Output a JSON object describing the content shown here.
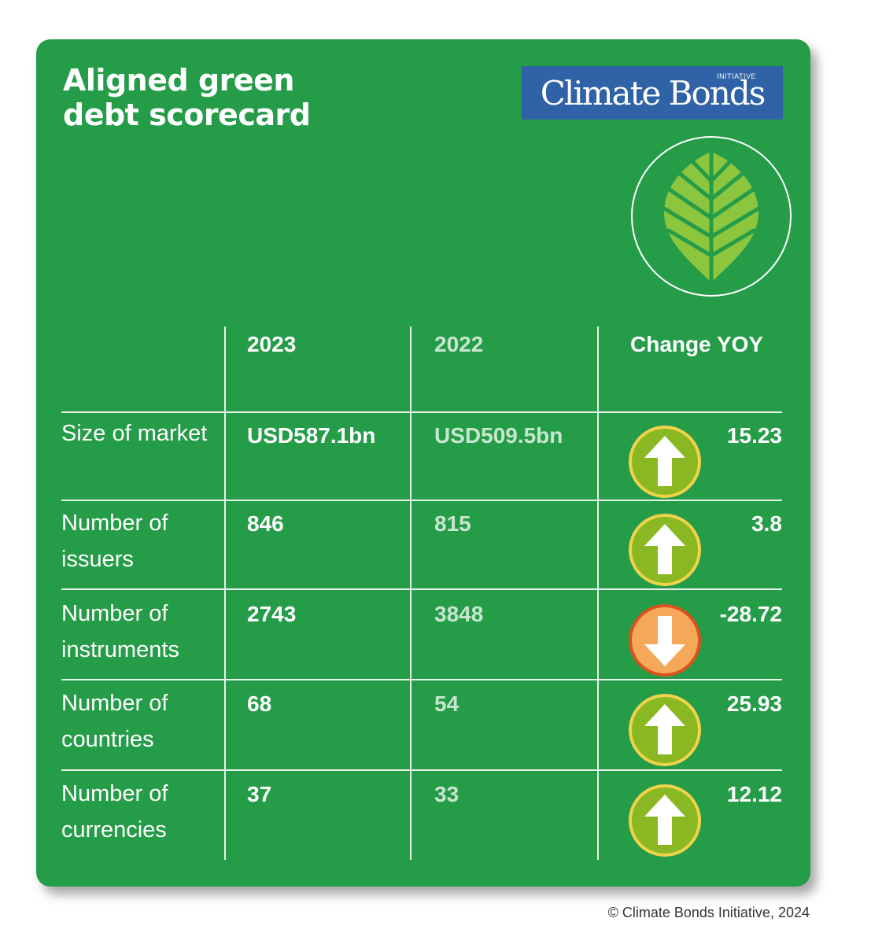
{
  "title": "Aligned green\ndebt scorecard",
  "logo": {
    "main": "Climate Bonds",
    "sub": "INITIATIVE"
  },
  "table": {
    "headers": {
      "year_2023": "2023",
      "year_2022": "2022",
      "change": "Change YOY"
    },
    "rows": [
      {
        "label": "Size of market",
        "v2023": "USD587.1bn",
        "v2022": "USD509.5bn",
        "change": "15.23",
        "direction": "up"
      },
      {
        "label": "Number of issuers",
        "v2023": "846",
        "v2022": "815",
        "change": "3.8",
        "direction": "up"
      },
      {
        "label": "Number of instruments",
        "v2023": "2743",
        "v2022": "3848",
        "change": "-28.72",
        "direction": "down"
      },
      {
        "label": "Number of countries",
        "v2023": "68",
        "v2022": "54",
        "change": "25.93",
        "direction": "up"
      },
      {
        "label": "Number of currencies",
        "v2023": "37",
        "v2022": "33",
        "change": "12.12",
        "direction": "up"
      }
    ]
  },
  "credit": "© Climate Bonds Initiative, 2024",
  "colors": {
    "background": "#259c48",
    "up_fill": "#8ab823",
    "up_ring": "#f0d34a",
    "down_fill": "#f6a85a",
    "down_ring": "#d9531e",
    "leaf": "#8cc63f"
  },
  "icons": {
    "up": "arrow-up-icon",
    "down": "arrow-down-icon",
    "leaf": "leaf-icon"
  }
}
